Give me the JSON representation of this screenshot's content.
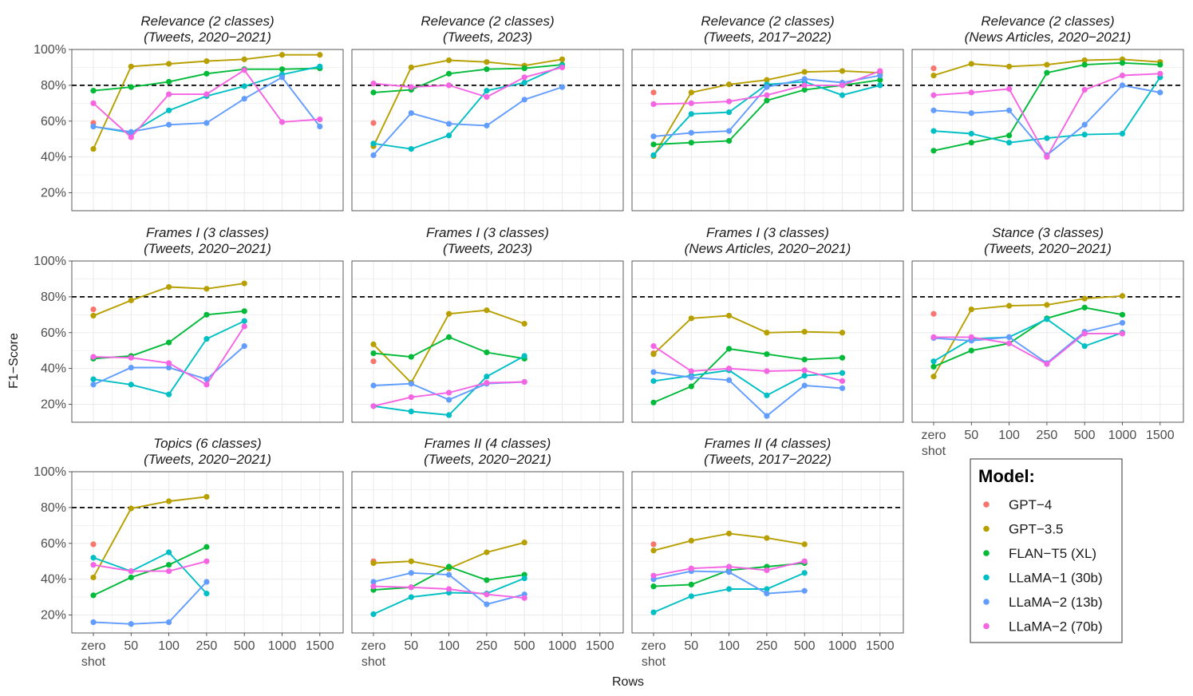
{
  "figure": {
    "y_axis_label": "F1−Score",
    "x_axis_label": "Rows",
    "legend_title": "Model:"
  },
  "chart_data": {
    "type": "line",
    "ylim": [
      10,
      100
    ],
    "y_ticks": [
      20,
      40,
      60,
      80,
      100
    ],
    "y_tick_labels": [
      "20%",
      "40%",
      "60%",
      "80%",
      "100%"
    ],
    "reference_line": 80,
    "categories": [
      "zero shot",
      "50",
      "100",
      "250",
      "500",
      "1000",
      "1500"
    ],
    "category_labels": [
      [
        "zero",
        "shot"
      ],
      [
        "50"
      ],
      [
        "100"
      ],
      [
        "250"
      ],
      [
        "500"
      ],
      [
        "1000"
      ],
      [
        "1500"
      ]
    ],
    "models": [
      {
        "name": "GPT−4",
        "color": "#F8766D"
      },
      {
        "name": "GPT−3.5",
        "color": "#B79F00"
      },
      {
        "name": "FLAN−T5 (XL)",
        "color": "#00BA38"
      },
      {
        "name": "LLaMA−1 (30b)",
        "color": "#00BFC4"
      },
      {
        "name": "LLaMA−2 (13b)",
        "color": "#619CFF"
      },
      {
        "name": "LLaMA−2 (70b)",
        "color": "#F564E3"
      }
    ],
    "panels": [
      {
        "title": [
          "Relevance (2 classes)",
          "(Tweets, 2020−2021)"
        ],
        "series": [
          {
            "model": 0,
            "values": [
              59,
              null,
              null,
              null,
              null,
              null,
              null
            ]
          },
          {
            "model": 1,
            "values": [
              44.5,
              90.5,
              92,
              93.5,
              94.5,
              97,
              97
            ]
          },
          {
            "model": 2,
            "values": [
              77,
              79,
              82,
              86.5,
              89,
              89,
              89.5
            ]
          },
          {
            "model": 3,
            "values": [
              57,
              53.5,
              66,
              74,
              79.5,
              86,
              90.5
            ]
          },
          {
            "model": 4,
            "values": [
              57,
              54,
              58,
              59,
              72.5,
              84.5,
              57
            ]
          },
          {
            "model": 5,
            "values": [
              70,
              51,
              75,
              75,
              88.5,
              59.5,
              61
            ]
          }
        ]
      },
      {
        "title": [
          "Relevance (2 classes)",
          "(Tweets, 2023)"
        ],
        "series": [
          {
            "model": 0,
            "values": [
              59,
              null,
              null,
              null,
              null,
              null,
              null
            ]
          },
          {
            "model": 1,
            "values": [
              46,
              90,
              94,
              93,
              91,
              94.5,
              null
            ]
          },
          {
            "model": 2,
            "values": [
              76,
              77.5,
              86.5,
              89,
              89.5,
              91.5,
              null
            ]
          },
          {
            "model": 3,
            "values": [
              47.5,
              44.5,
              52,
              77,
              81.5,
              91,
              null
            ]
          },
          {
            "model": 4,
            "values": [
              41,
              64.5,
              58.5,
              57.5,
              72,
              79,
              null
            ]
          },
          {
            "model": 5,
            "values": [
              81,
              79,
              80,
              73.5,
              84.5,
              90,
              null
            ]
          }
        ]
      },
      {
        "title": [
          "Relevance (2 classes)",
          "(Tweets, 2017−2022)"
        ],
        "series": [
          {
            "model": 0,
            "values": [
              76,
              null,
              null,
              null,
              null,
              null,
              null
            ]
          },
          {
            "model": 1,
            "values": [
              40.5,
              76,
              80.5,
              83,
              87.5,
              88,
              87
            ]
          },
          {
            "model": 2,
            "values": [
              47,
              48,
              49,
              71.5,
              77.5,
              80,
              83
            ]
          },
          {
            "model": 3,
            "values": [
              41,
              64,
              65,
              80.5,
              82,
              74.5,
              80
            ]
          },
          {
            "model": 4,
            "values": [
              51.5,
              53.5,
              54.5,
              79,
              83.5,
              81.5,
              85.5
            ]
          },
          {
            "model": 5,
            "values": [
              69.5,
              70,
              71,
              74.5,
              80,
              80,
              88
            ]
          }
        ]
      },
      {
        "title": [
          "Relevance (2 classes)",
          "(News Articles, 2020−2021)"
        ],
        "series": [
          {
            "model": 0,
            "values": [
              89.5,
              null,
              null,
              null,
              null,
              null,
              null
            ]
          },
          {
            "model": 1,
            "values": [
              85.5,
              92,
              90.5,
              91.5,
              94,
              94.5,
              93
            ]
          },
          {
            "model": 2,
            "values": [
              43.5,
              48,
              52,
              87,
              91.5,
              92.5,
              91.5
            ]
          },
          {
            "model": 3,
            "values": [
              54.5,
              53,
              48,
              50.5,
              52.5,
              53,
              84.5
            ]
          },
          {
            "model": 4,
            "values": [
              66,
              64.5,
              66,
              41,
              58,
              80,
              76
            ]
          },
          {
            "model": 5,
            "values": [
              74.5,
              76,
              78,
              40,
              77.5,
              85.5,
              86.5
            ]
          }
        ]
      },
      {
        "title": [
          "Frames I (3 classes)",
          "(Tweets, 2020−2021)"
        ],
        "series": [
          {
            "model": 0,
            "values": [
              73,
              null,
              null,
              null,
              null,
              null,
              null
            ]
          },
          {
            "model": 1,
            "values": [
              69.5,
              78,
              85.5,
              84.5,
              87.5,
              null,
              null
            ]
          },
          {
            "model": 2,
            "values": [
              45.5,
              47,
              54.5,
              70,
              72,
              null,
              null
            ]
          },
          {
            "model": 3,
            "values": [
              34,
              31,
              25.5,
              56.5,
              66.5,
              null,
              null
            ]
          },
          {
            "model": 4,
            "values": [
              31,
              40.5,
              40.5,
              34,
              52.5,
              null,
              null
            ]
          },
          {
            "model": 5,
            "values": [
              46.5,
              46,
              43,
              31,
              63.5,
              null,
              null
            ]
          }
        ]
      },
      {
        "title": [
          "Frames I (3 classes)",
          "(Tweets, 2023)"
        ],
        "series": [
          {
            "model": 0,
            "values": [
              44,
              null,
              null,
              null,
              null,
              null,
              null
            ]
          },
          {
            "model": 1,
            "values": [
              53.5,
              32,
              70.5,
              72.5,
              65,
              null,
              null
            ]
          },
          {
            "model": 2,
            "values": [
              48.5,
              46.5,
              57.5,
              49,
              45.5,
              null,
              null
            ]
          },
          {
            "model": 3,
            "values": [
              19,
              16,
              14,
              35.5,
              47,
              null,
              null
            ]
          },
          {
            "model": 4,
            "values": [
              30.5,
              31.5,
              22.5,
              31.5,
              32.5,
              null,
              null
            ]
          },
          {
            "model": 5,
            "values": [
              19,
              24,
              26.5,
              32,
              32.5,
              null,
              null
            ]
          }
        ]
      },
      {
        "title": [
          "Frames I (3 classes)",
          "(News Articles, 2020−2021)"
        ],
        "series": [
          {
            "model": 0,
            "values": [
              48.5,
              null,
              null,
              null,
              null,
              null,
              null
            ]
          },
          {
            "model": 1,
            "values": [
              48,
              68,
              69.5,
              60,
              60.5,
              60,
              null
            ]
          },
          {
            "model": 2,
            "values": [
              21,
              30,
              51,
              48,
              45,
              46,
              null
            ]
          },
          {
            "model": 3,
            "values": [
              33,
              36,
              39,
              25,
              36,
              37.5,
              null
            ]
          },
          {
            "model": 4,
            "values": [
              38,
              35,
              33.5,
              13.5,
              30.5,
              29,
              null
            ]
          },
          {
            "model": 5,
            "values": [
              52.5,
              38.5,
              40,
              38.5,
              39,
              33,
              null
            ]
          }
        ]
      },
      {
        "title": [
          "Stance (3 classes)",
          "(Tweets, 2020−2021)"
        ],
        "series": [
          {
            "model": 0,
            "values": [
              70.5,
              null,
              null,
              null,
              null,
              null,
              null
            ]
          },
          {
            "model": 1,
            "values": [
              35.5,
              73,
              75,
              75.5,
              79,
              80.5,
              null
            ]
          },
          {
            "model": 2,
            "values": [
              41,
              50,
              54,
              68,
              74,
              70,
              null
            ]
          },
          {
            "model": 3,
            "values": [
              44,
              56.5,
              57.5,
              67.5,
              52.5,
              60,
              null
            ]
          },
          {
            "model": 4,
            "values": [
              57,
              55.5,
              57.5,
              43,
              60.5,
              65.5,
              null
            ]
          },
          {
            "model": 5,
            "values": [
              57.5,
              57.5,
              54,
              42.5,
              59.5,
              59.5,
              null
            ]
          }
        ]
      },
      {
        "title": [
          "Topics (6 classes)",
          "(Tweets, 2020−2021)"
        ],
        "series": [
          {
            "model": 0,
            "values": [
              59.5,
              null,
              null,
              null,
              null,
              null,
              null
            ]
          },
          {
            "model": 1,
            "values": [
              41,
              79.5,
              83.5,
              86,
              null,
              null,
              null
            ]
          },
          {
            "model": 2,
            "values": [
              31,
              41,
              48,
              58,
              null,
              null,
              null
            ]
          },
          {
            "model": 3,
            "values": [
              52,
              44.5,
              55,
              32,
              null,
              null,
              null
            ]
          },
          {
            "model": 4,
            "values": [
              16,
              15,
              16,
              38.5,
              null,
              null,
              null
            ]
          },
          {
            "model": 5,
            "values": [
              48,
              44.5,
              44.5,
              50,
              null,
              null,
              null
            ]
          }
        ]
      },
      {
        "title": [
          "Frames II (4 classes)",
          "(Tweets, 2020−2021)"
        ],
        "series": [
          {
            "model": 0,
            "values": [
              50,
              null,
              null,
              null,
              null,
              null,
              null
            ]
          },
          {
            "model": 1,
            "values": [
              49,
              50,
              46,
              55,
              60.5,
              null,
              null
            ]
          },
          {
            "model": 2,
            "values": [
              34,
              35.5,
              47,
              39.5,
              42.5,
              null,
              null
            ]
          },
          {
            "model": 3,
            "values": [
              20.5,
              30,
              32.5,
              32,
              40.5,
              null,
              null
            ]
          },
          {
            "model": 4,
            "values": [
              38.5,
              43.5,
              42.5,
              26,
              31.5,
              null,
              null
            ]
          },
          {
            "model": 5,
            "values": [
              36,
              35.5,
              34.5,
              31.5,
              29.5,
              null,
              null
            ]
          }
        ]
      },
      {
        "title": [
          "Frames II (4 classes)",
          "(Tweets, 2017−2022)"
        ],
        "series": [
          {
            "model": 0,
            "values": [
              59.5,
              null,
              null,
              null,
              null,
              null,
              null
            ]
          },
          {
            "model": 1,
            "values": [
              56,
              61.5,
              65.5,
              63,
              59.5,
              null,
              null
            ]
          },
          {
            "model": 2,
            "values": [
              36,
              37,
              45,
              47,
              49,
              null,
              null
            ]
          },
          {
            "model": 3,
            "values": [
              21.5,
              30.5,
              34.5,
              34.5,
              43.5,
              null,
              null
            ]
          },
          {
            "model": 4,
            "values": [
              40,
              44.5,
              44,
              32,
              33.5,
              null,
              null
            ]
          },
          {
            "model": 5,
            "values": [
              42,
              46,
              47,
              45,
              50,
              null,
              null
            ]
          }
        ]
      }
    ]
  }
}
